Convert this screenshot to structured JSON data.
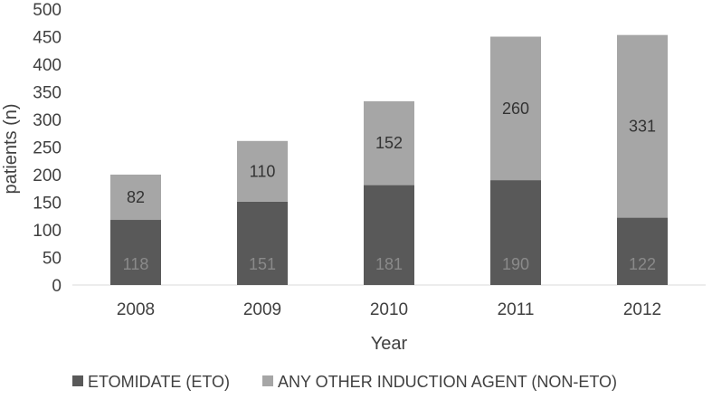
{
  "chart_data": {
    "type": "bar",
    "stacked": true,
    "categories": [
      "2008",
      "2009",
      "2010",
      "2011",
      "2012"
    ],
    "series": [
      {
        "name": "ETOMIDATE (ETO)",
        "values": [
          118,
          151,
          181,
          190,
          122
        ],
        "color": "#595959",
        "labels": [
          "118",
          "151",
          "181",
          "190",
          "122"
        ]
      },
      {
        "name": "ANY OTHER INDUCTION AGENT (NON-ETO)",
        "values": [
          82,
          110,
          152,
          260,
          331
        ],
        "color": "#a6a6a6",
        "labels": [
          "82",
          "110",
          "152",
          "260",
          "331"
        ]
      }
    ],
    "xlabel": "Year",
    "ylabel": "patients (n)",
    "ylim": [
      0,
      500
    ],
    "yticks": [
      "0",
      "50",
      "100",
      "150",
      "200",
      "250",
      "300",
      "350",
      "400",
      "450",
      "500"
    ],
    "grid": false,
    "legend_position": "bottom"
  }
}
